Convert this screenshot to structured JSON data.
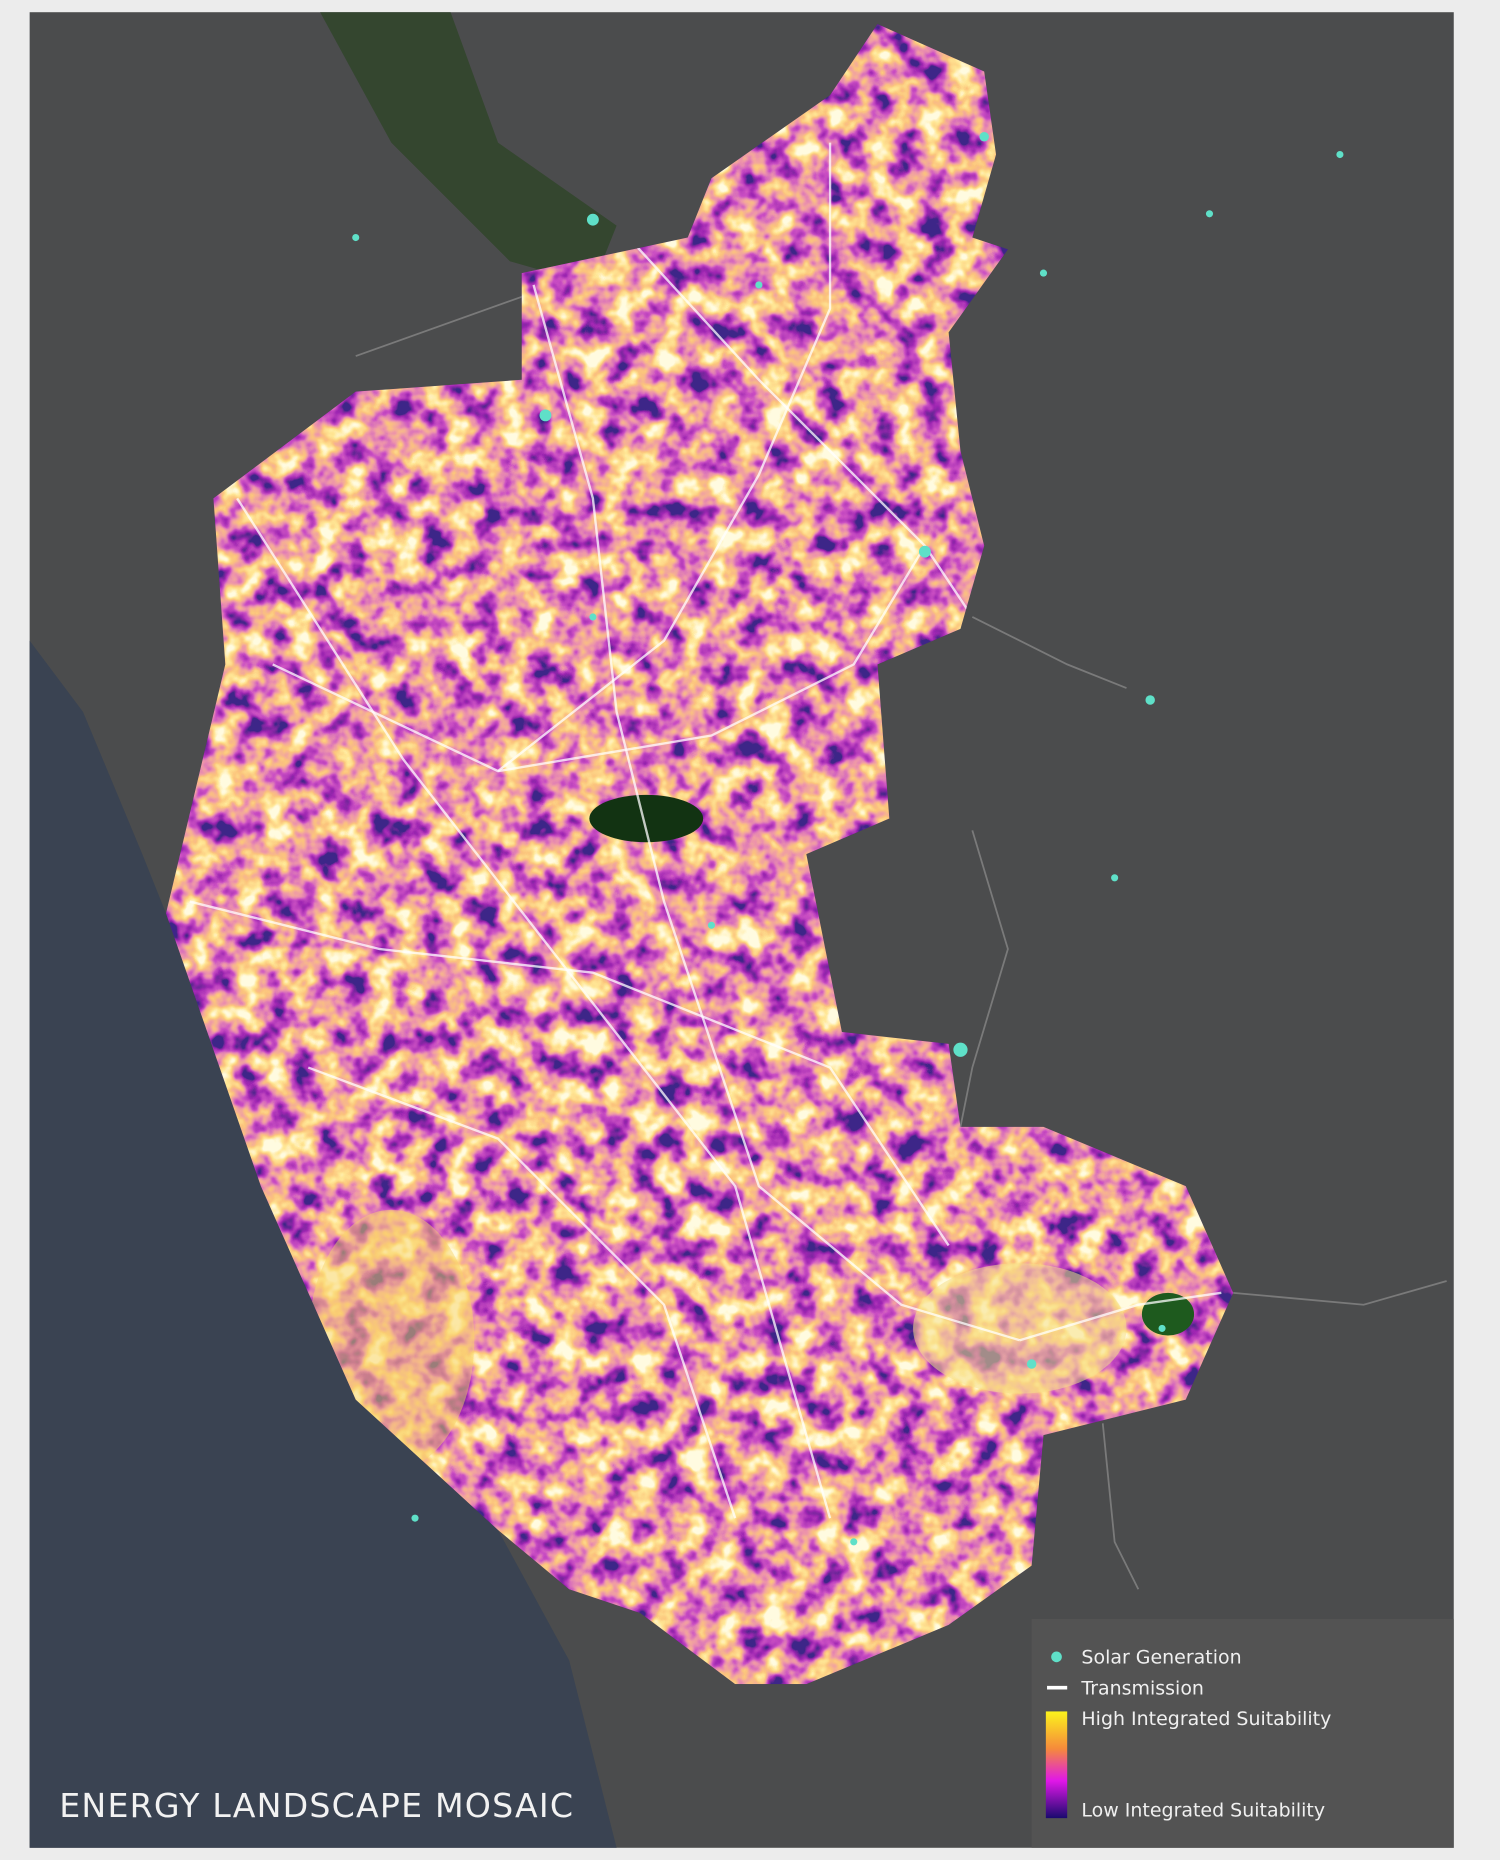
{
  "title": "ENERGY LANDSCAPE MOSAIC",
  "legend": {
    "items": [
      "Solar Generation",
      "Transmission"
    ],
    "scale_high": "High Integrated Suitability",
    "scale_low": "Low Integrated Suitability"
  }
}
